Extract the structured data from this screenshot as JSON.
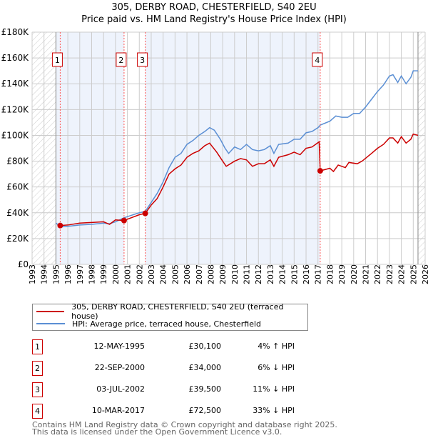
{
  "title": "305, DERBY ROAD, CHESTERFIELD, S40 2EU",
  "subtitle": "Price paid vs. HM Land Registry's House Price Index (HPI)",
  "chart_data": {
    "type": "line",
    "title": "305, DERBY ROAD, CHESTERFIELD, S40 2EU",
    "subtitle": "Price paid vs. HM Land Registry's House Price Index (HPI)",
    "xlim": [
      1993,
      2026
    ],
    "ylim": [
      0,
      180000
    ],
    "x_ticks": [
      "1993",
      "1994",
      "1995",
      "1996",
      "1997",
      "1998",
      "1999",
      "2000",
      "2001",
      "2002",
      "2003",
      "2004",
      "2005",
      "2006",
      "2007",
      "2008",
      "2009",
      "2010",
      "2011",
      "2012",
      "2013",
      "2014",
      "2015",
      "2016",
      "2017",
      "2018",
      "2019",
      "2020",
      "2021",
      "2022",
      "2023",
      "2024",
      "2025",
      "2026"
    ],
    "y_ticks": [
      {
        "v": 0,
        "label": "£0"
      },
      {
        "v": 20000,
        "label": "£20K"
      },
      {
        "v": 40000,
        "label": "£40K"
      },
      {
        "v": 60000,
        "label": "£60K"
      },
      {
        "v": 80000,
        "label": "£80K"
      },
      {
        "v": 100000,
        "label": "£100K"
      },
      {
        "v": 120000,
        "label": "£120K"
      },
      {
        "v": 140000,
        "label": "£140K"
      },
      {
        "v": 160000,
        "label": "£160K"
      },
      {
        "v": 180000,
        "label": "£180K"
      }
    ],
    "grid": true,
    "colors": {
      "property": "#cc0000",
      "hpi": "#5b8fd4",
      "shade": "#eef3fc"
    },
    "series": [
      {
        "name": "305, DERBY ROAD, CHESTERFIELD, S40 2EU (terraced house)",
        "color": "#cc0000",
        "points": [
          [
            1995.36,
            30100
          ],
          [
            1996,
            30500
          ],
          [
            1997,
            32000
          ],
          [
            1998,
            32500
          ],
          [
            1999,
            33000
          ],
          [
            1999.5,
            31000
          ],
          [
            2000,
            34500
          ],
          [
            2000.72,
            34000
          ],
          [
            2001,
            35000
          ],
          [
            2002,
            38500
          ],
          [
            2002.5,
            39500
          ],
          [
            2003,
            46000
          ],
          [
            2003.5,
            51000
          ],
          [
            2004,
            60000
          ],
          [
            2004.5,
            70000
          ],
          [
            2005,
            74000
          ],
          [
            2005.5,
            77000
          ],
          [
            2006,
            83000
          ],
          [
            2006.5,
            86000
          ],
          [
            2007,
            88000
          ],
          [
            2007.5,
            92000
          ],
          [
            2007.9,
            94000
          ],
          [
            2008.5,
            87000
          ],
          [
            2009,
            80000
          ],
          [
            2009.3,
            76000
          ],
          [
            2010,
            80000
          ],
          [
            2010.5,
            82000
          ],
          [
            2011,
            81000
          ],
          [
            2011.5,
            76000
          ],
          [
            2012,
            78000
          ],
          [
            2012.5,
            78000
          ],
          [
            2013,
            81000
          ],
          [
            2013.3,
            76000
          ],
          [
            2013.7,
            83000
          ],
          [
            2014.5,
            85000
          ],
          [
            2015,
            87000
          ],
          [
            2015.5,
            85000
          ],
          [
            2016,
            90000
          ],
          [
            2016.5,
            91000
          ],
          [
            2017.1,
            95000
          ],
          [
            2017.19,
            72500
          ],
          [
            2018,
            74500
          ],
          [
            2018.3,
            72000
          ],
          [
            2018.7,
            77000
          ],
          [
            2019.3,
            75000
          ],
          [
            2019.6,
            79000
          ],
          [
            2020.3,
            78000
          ],
          [
            2020.7,
            80000
          ],
          [
            2021.5,
            86000
          ],
          [
            2022,
            90000
          ],
          [
            2022.5,
            93000
          ],
          [
            2023,
            98000
          ],
          [
            2023.3,
            98000
          ],
          [
            2023.7,
            94000
          ],
          [
            2024,
            99000
          ],
          [
            2024.4,
            94000
          ],
          [
            2024.8,
            97000
          ],
          [
            2025,
            101000
          ],
          [
            2025.4,
            100000
          ]
        ]
      },
      {
        "name": "HPI: Average price, terraced house, Chesterfield",
        "color": "#5b8fd4",
        "points": [
          [
            1995,
            32000
          ],
          [
            1995.4,
            29000
          ],
          [
            1996,
            29500
          ],
          [
            1997,
            30500
          ],
          [
            1998,
            31000
          ],
          [
            1999,
            32000
          ],
          [
            1999.5,
            31500
          ],
          [
            2000,
            33000
          ],
          [
            2000.7,
            36000
          ],
          [
            2001,
            37000
          ],
          [
            2002,
            40000
          ],
          [
            2002.5,
            41000
          ],
          [
            2003,
            48000
          ],
          [
            2003.5,
            55000
          ],
          [
            2004,
            64000
          ],
          [
            2004.5,
            75000
          ],
          [
            2005,
            83000
          ],
          [
            2005.5,
            86000
          ],
          [
            2006,
            93000
          ],
          [
            2006.5,
            96000
          ],
          [
            2007,
            100000
          ],
          [
            2007.5,
            103000
          ],
          [
            2007.9,
            106000
          ],
          [
            2008.3,
            104000
          ],
          [
            2008.8,
            97000
          ],
          [
            2009.2,
            90000
          ],
          [
            2009.5,
            86000
          ],
          [
            2010,
            91000
          ],
          [
            2010.5,
            89000
          ],
          [
            2011,
            93000
          ],
          [
            2011.5,
            89000
          ],
          [
            2012,
            88000
          ],
          [
            2012.5,
            89000
          ],
          [
            2013,
            92000
          ],
          [
            2013.3,
            86000
          ],
          [
            2013.7,
            93000
          ],
          [
            2014.5,
            94000
          ],
          [
            2015,
            97000
          ],
          [
            2015.5,
            97000
          ],
          [
            2016,
            102000
          ],
          [
            2016.5,
            103000
          ],
          [
            2017,
            106000
          ],
          [
            2017.2,
            108000
          ],
          [
            2018,
            111000
          ],
          [
            2018.5,
            115000
          ],
          [
            2019,
            114000
          ],
          [
            2019.5,
            114000
          ],
          [
            2020,
            117000
          ],
          [
            2020.5,
            117000
          ],
          [
            2021,
            122000
          ],
          [
            2021.5,
            128000
          ],
          [
            2022,
            134000
          ],
          [
            2022.5,
            139000
          ],
          [
            2023,
            146000
          ],
          [
            2023.3,
            147000
          ],
          [
            2023.7,
            141000
          ],
          [
            2024,
            146000
          ],
          [
            2024.4,
            140000
          ],
          [
            2024.8,
            145000
          ],
          [
            2025,
            150000
          ],
          [
            2025.4,
            150000
          ]
        ]
      }
    ],
    "sales": [
      {
        "label": "1",
        "x": 1995.36,
        "y": 30100
      },
      {
        "label": "2",
        "x": 2000.72,
        "y": 34000
      },
      {
        "label": "3",
        "x": 2002.5,
        "y": 39500
      },
      {
        "label": "4",
        "x": 2017.19,
        "y": 72500
      }
    ],
    "shaded_ranges": [
      [
        1995,
        2000.72
      ],
      [
        2002.5,
        2017.19
      ]
    ],
    "hatched_ranges": [
      [
        1993,
        1995
      ],
      [
        2025.4,
        2026
      ]
    ]
  },
  "legend": [
    {
      "label": "305, DERBY ROAD, CHESTERFIELD, S40 2EU (terraced house)",
      "color": "#cc0000"
    },
    {
      "label": "HPI: Average price, terraced house, Chesterfield",
      "color": "#5b8fd4"
    }
  ],
  "transactions": [
    {
      "num": "1",
      "date": "12-MAY-1995",
      "price": "£30,100",
      "hpi": "4% ↑ HPI"
    },
    {
      "num": "2",
      "date": "22-SEP-2000",
      "price": "£34,000",
      "hpi": "6% ↓ HPI"
    },
    {
      "num": "3",
      "date": "03-JUL-2002",
      "price": "£39,500",
      "hpi": "11% ↓ HPI"
    },
    {
      "num": "4",
      "date": "10-MAR-2017",
      "price": "£72,500",
      "hpi": "33% ↓ HPI"
    }
  ],
  "footer": {
    "line1": "Contains HM Land Registry data © Crown copyright and database right 2025.",
    "line2": "This data is licensed under the Open Government Licence v3.0."
  }
}
